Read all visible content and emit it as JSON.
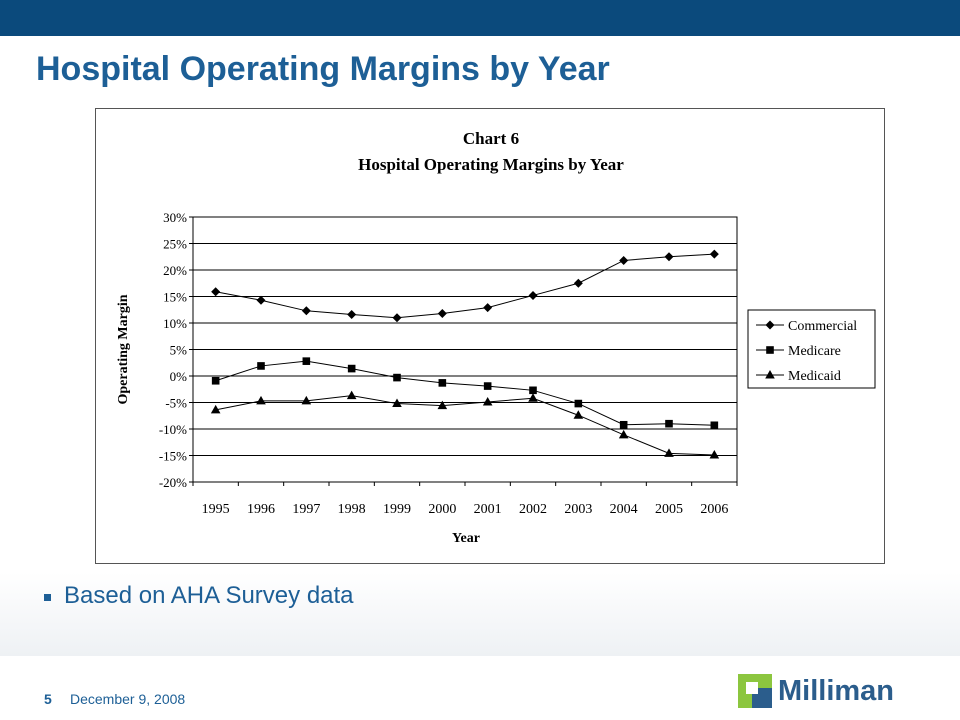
{
  "slide": {
    "title": "Hospital Operating Margins by Year",
    "bullet": "Based on AHA Survey data",
    "page_number": "5",
    "date": "December 9, 2008",
    "logo_text": "Milliman"
  },
  "colors": {
    "top_bar": "#0b4a7c",
    "title": "#1d5f96",
    "logo_green": "#8cc63f",
    "logo_blue": "#2b5d8c"
  },
  "chart_data": {
    "type": "line",
    "title": "Chart 6",
    "subtitle": "Hospital Operating Margins by Year",
    "xlabel": "Year",
    "ylabel": "Operating Margin",
    "x": [
      "1995",
      "1996",
      "1997",
      "1998",
      "1999",
      "2000",
      "2001",
      "2002",
      "2003",
      "2004",
      "2005",
      "2006"
    ],
    "ylim": [
      -20,
      30
    ],
    "yticks": [
      "30%",
      "25%",
      "20%",
      "15%",
      "10%",
      "5%",
      "0%",
      "-5%",
      "-10%",
      "-15%",
      "-20%"
    ],
    "grid": true,
    "legend_position": "right",
    "series": [
      {
        "name": "Commercial",
        "marker": "diamond",
        "values": [
          15.9,
          14.3,
          12.3,
          11.6,
          11.0,
          11.8,
          12.9,
          15.2,
          17.5,
          21.8,
          22.5,
          23.0
        ]
      },
      {
        "name": "Medicare",
        "marker": "square",
        "values": [
          -0.9,
          1.9,
          2.8,
          1.4,
          -0.3,
          -1.3,
          -1.9,
          -2.7,
          -5.2,
          -9.2,
          -9.0,
          -9.3
        ]
      },
      {
        "name": "Medicaid",
        "marker": "triangle",
        "values": [
          -6.4,
          -4.7,
          -4.7,
          -3.7,
          -5.2,
          -5.6,
          -4.9,
          -4.2,
          -7.4,
          -11.1,
          -14.6,
          -14.9
        ]
      }
    ]
  }
}
